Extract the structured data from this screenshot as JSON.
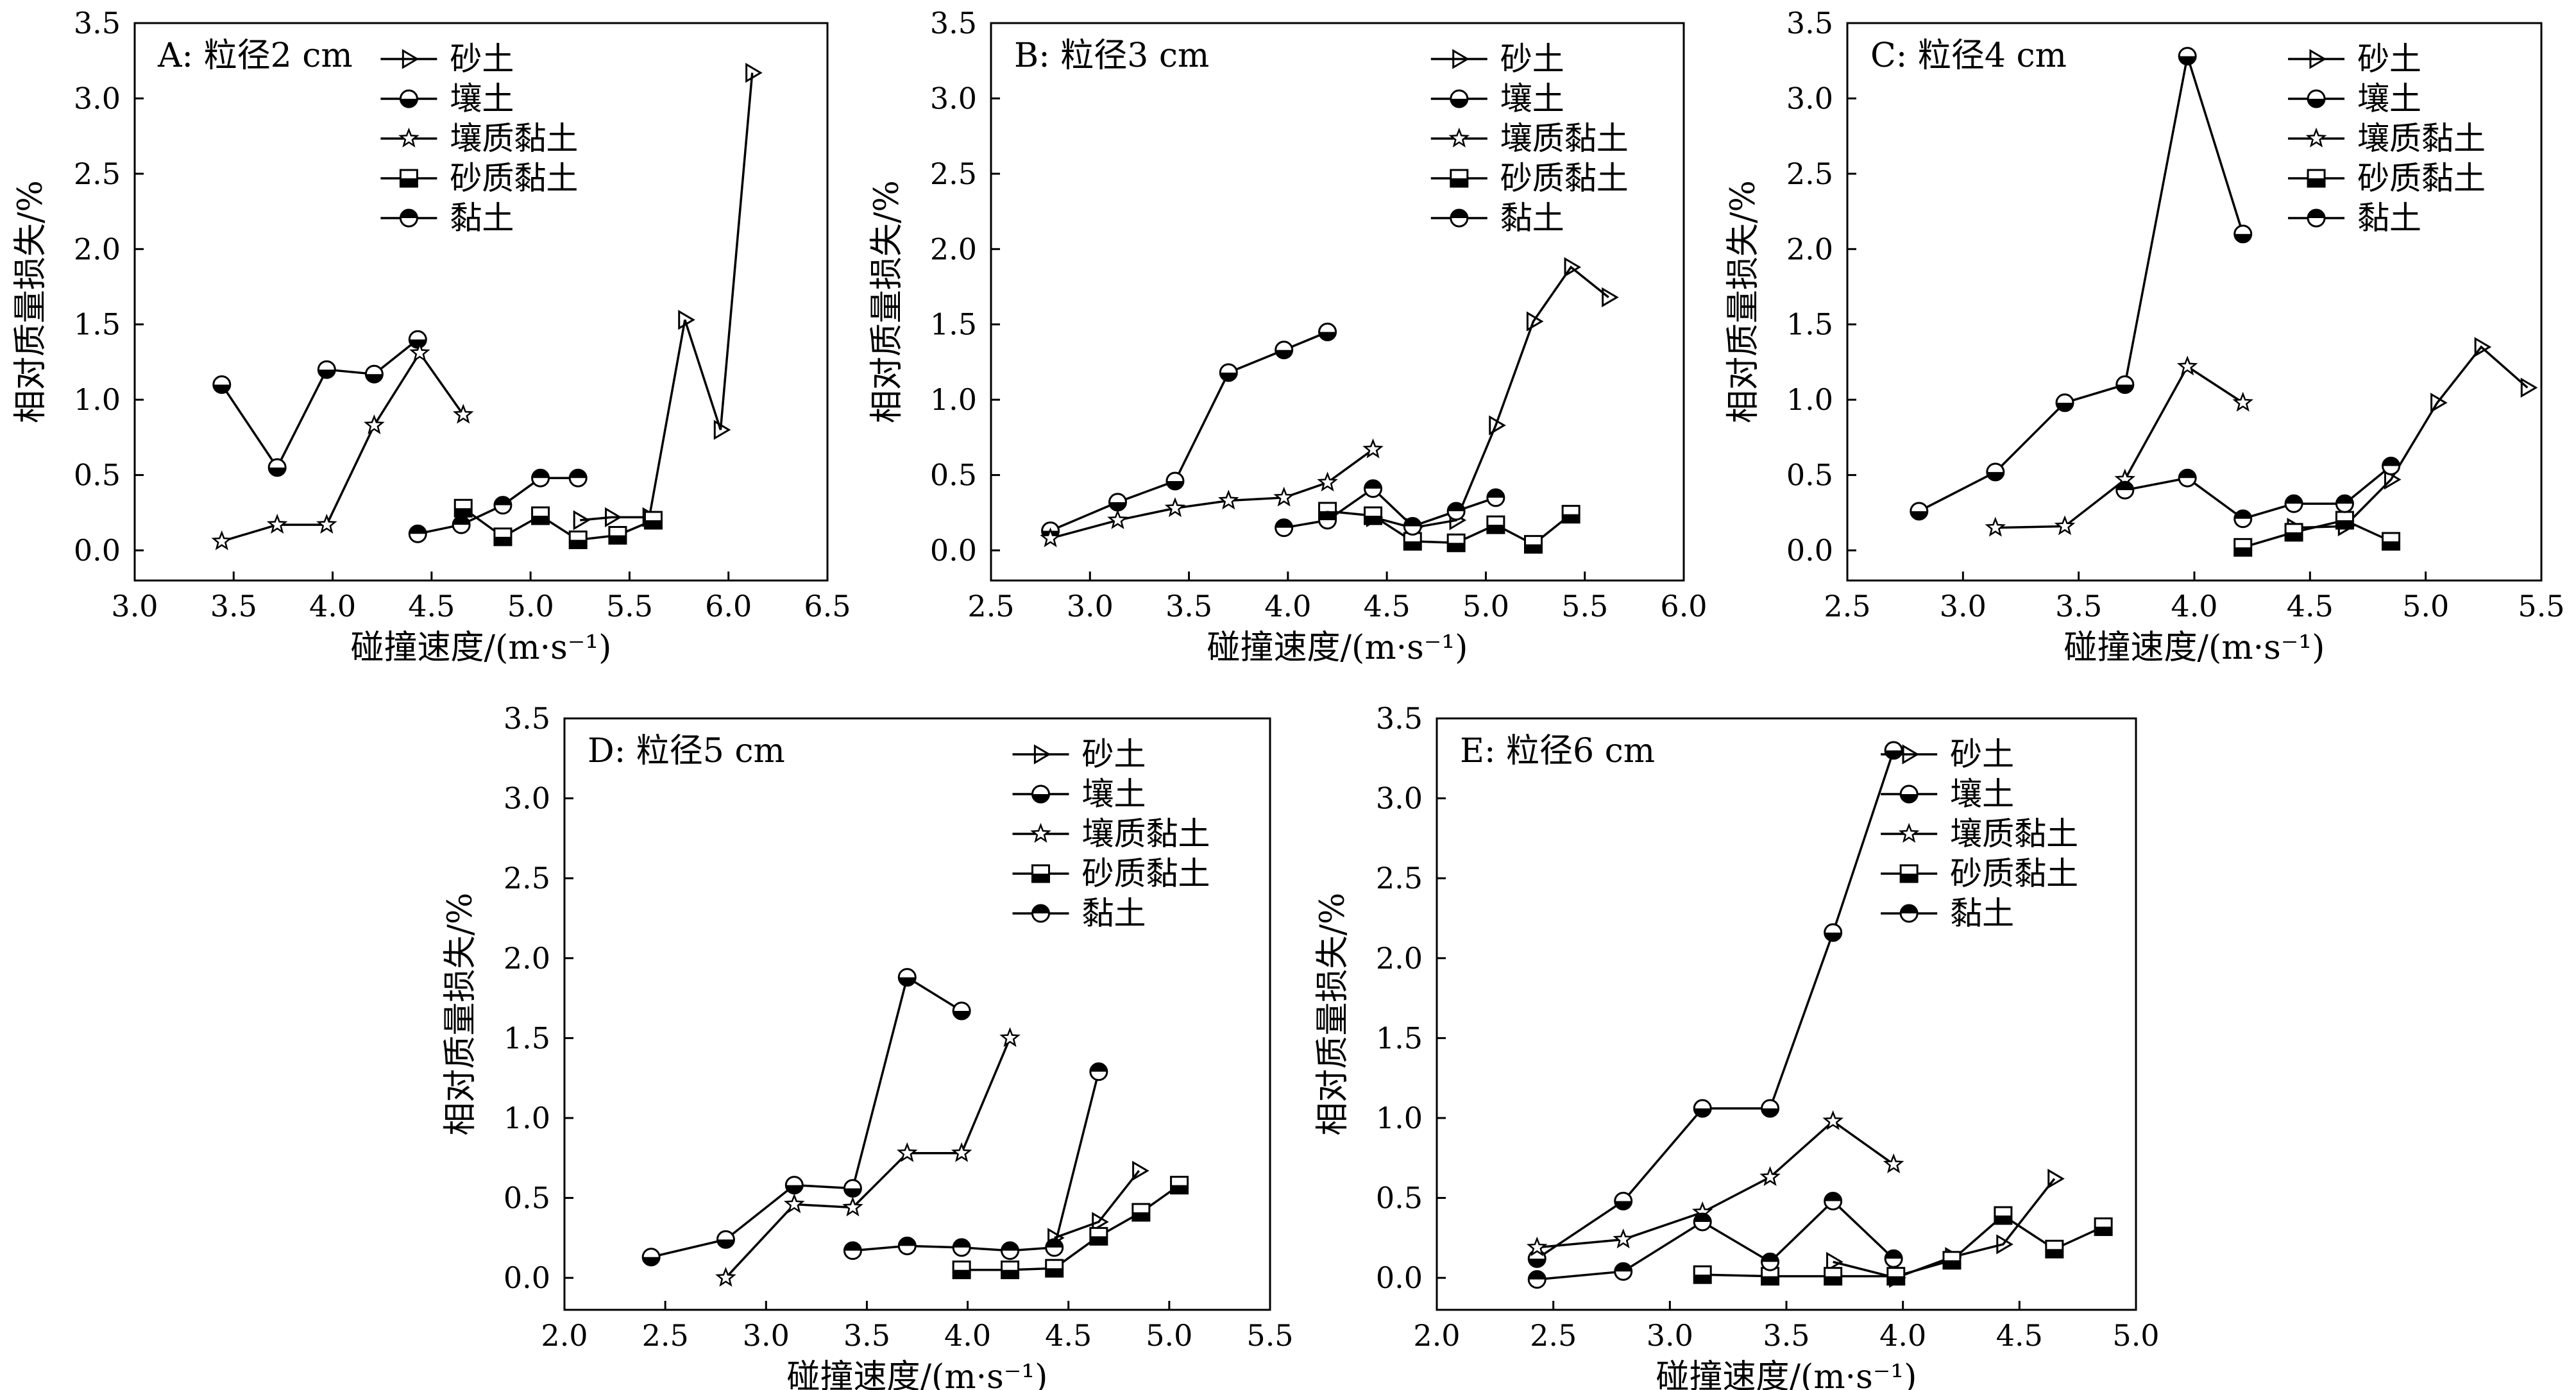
{
  "figure": {
    "xlabel": "碰撞速度/(m·s⁻¹)",
    "ylabel": "相对质量损失/%",
    "legend": [
      "砂土",
      "壤土",
      "壤质黏土",
      "砂质黏土",
      "黏土"
    ]
  },
  "chart_data": [
    {
      "type": "line",
      "title": "A: 粒径2 cm",
      "xlabel": "碰撞速度/(m·s⁻¹)",
      "ylabel": "相对质量损失/%",
      "xlim": [
        3.0,
        6.5
      ],
      "ylim": [
        -0.2,
        3.5
      ],
      "xticks": [
        3.0,
        3.5,
        4.0,
        4.5,
        5.0,
        5.5,
        6.0,
        6.5
      ],
      "yticks": [
        0.0,
        0.5,
        1.0,
        1.5,
        2.0,
        2.5,
        3.0,
        3.5
      ],
      "legend_position": "top-center",
      "series": [
        {
          "name": "砂土",
          "marker": "triangle-right",
          "x": [
            5.25,
            5.41,
            5.6,
            5.78,
            5.96,
            6.12
          ],
          "y": [
            0.2,
            0.22,
            0.22,
            1.53,
            0.8,
            3.17
          ]
        },
        {
          "name": "壤土",
          "marker": "circle-half-bottom",
          "x": [
            3.44,
            3.72,
            3.97,
            4.21,
            4.43
          ],
          "y": [
            1.1,
            0.55,
            1.2,
            1.17,
            1.4
          ]
        },
        {
          "name": "壤质黏土",
          "marker": "star",
          "x": [
            3.44,
            3.72,
            3.97,
            4.21,
            4.44,
            4.66
          ],
          "y": [
            0.06,
            0.17,
            0.17,
            0.83,
            1.31,
            0.9
          ]
        },
        {
          "name": "砂质黏土",
          "marker": "square-half-bottom",
          "x": [
            4.66,
            4.86,
            5.05,
            5.24,
            5.44,
            5.62
          ],
          "y": [
            0.28,
            0.09,
            0.23,
            0.07,
            0.1,
            0.2
          ]
        },
        {
          "name": "黏土",
          "marker": "circle-half-top",
          "x": [
            4.43,
            4.65,
            4.86,
            5.05,
            5.24
          ],
          "y": [
            0.11,
            0.17,
            0.3,
            0.48,
            0.48
          ]
        }
      ]
    },
    {
      "type": "line",
      "title": "B: 粒径3 cm",
      "xlabel": "碰撞速度/(m·s⁻¹)",
      "ylabel": "相对质量损失/%",
      "xlim": [
        2.5,
        6.0
      ],
      "ylim": [
        -0.2,
        3.5
      ],
      "xticks": [
        2.5,
        3.0,
        3.5,
        4.0,
        4.5,
        5.0,
        5.5,
        6.0
      ],
      "yticks": [
        0.0,
        0.5,
        1.0,
        1.5,
        2.0,
        2.5,
        3.0,
        3.5
      ],
      "legend_position": "top-right",
      "series": [
        {
          "name": "砂土",
          "marker": "triangle-right",
          "x": [
            4.43,
            4.63,
            4.85,
            5.05,
            5.24,
            5.43,
            5.62
          ],
          "y": [
            0.22,
            0.15,
            0.2,
            0.83,
            1.52,
            1.88,
            1.68
          ]
        },
        {
          "name": "壤土",
          "marker": "circle-half-bottom",
          "x": [
            2.8,
            3.14,
            3.43,
            3.7,
            3.98,
            4.2
          ],
          "y": [
            0.13,
            0.32,
            0.46,
            1.18,
            1.33,
            1.45
          ]
        },
        {
          "name": "壤质黏土",
          "marker": "star",
          "x": [
            2.8,
            3.14,
            3.43,
            3.7,
            3.98,
            4.2,
            4.43
          ],
          "y": [
            0.08,
            0.2,
            0.28,
            0.33,
            0.35,
            0.45,
            0.67
          ]
        },
        {
          "name": "砂质黏土",
          "marker": "square-half-bottom",
          "x": [
            4.2,
            4.43,
            4.63,
            4.85,
            5.05,
            5.24,
            5.43
          ],
          "y": [
            0.26,
            0.23,
            0.06,
            0.05,
            0.17,
            0.04,
            0.24
          ]
        },
        {
          "name": "黏土",
          "marker": "circle-half-top",
          "x": [
            3.98,
            4.2,
            4.43,
            4.63,
            4.85,
            5.05
          ],
          "y": [
            0.15,
            0.2,
            0.41,
            0.16,
            0.26,
            0.35
          ]
        }
      ]
    },
    {
      "type": "line",
      "title": "C: 粒径4 cm",
      "xlabel": "碰撞速度/(m·s⁻¹)",
      "ylabel": "相对质量损失/%",
      "xlim": [
        2.5,
        5.5
      ],
      "ylim": [
        -0.2,
        3.5
      ],
      "xticks": [
        2.5,
        3.0,
        3.5,
        4.0,
        4.5,
        5.0,
        5.5
      ],
      "yticks": [
        0.0,
        0.5,
        1.0,
        1.5,
        2.0,
        2.5,
        3.0,
        3.5
      ],
      "legend_position": "top-right",
      "series": [
        {
          "name": "砂土",
          "marker": "triangle-right",
          "x": [
            4.43,
            4.65,
            4.85,
            5.05,
            5.24,
            5.44
          ],
          "y": [
            0.15,
            0.16,
            0.47,
            0.98,
            1.35,
            1.08
          ]
        },
        {
          "name": "壤土",
          "marker": "circle-half-bottom",
          "x": [
            2.81,
            3.14,
            3.44,
            3.7,
            3.97,
            4.21
          ],
          "y": [
            0.26,
            0.52,
            0.98,
            1.1,
            3.28,
            2.1
          ]
        },
        {
          "name": "壤质黏土",
          "marker": "star",
          "x": [
            3.14,
            3.44,
            3.7,
            3.97,
            4.21
          ],
          "y": [
            0.15,
            0.16,
            0.47,
            1.22,
            0.98
          ]
        },
        {
          "name": "砂质黏土",
          "marker": "square-half-bottom",
          "x": [
            4.21,
            4.43,
            4.65,
            4.85
          ],
          "y": [
            0.02,
            0.12,
            0.2,
            0.06
          ]
        },
        {
          "name": "黏土",
          "marker": "circle-half-top",
          "x": [
            3.7,
            3.97,
            4.21,
            4.43,
            4.65,
            4.85
          ],
          "y": [
            0.4,
            0.48,
            0.21,
            0.31,
            0.31,
            0.56
          ]
        }
      ]
    },
    {
      "type": "line",
      "title": "D: 粒径5 cm",
      "xlabel": "碰撞速度/(m·s⁻¹)",
      "ylabel": "相对质量损失/%",
      "xlim": [
        2.0,
        5.5
      ],
      "ylim": [
        -0.2,
        3.5
      ],
      "xticks": [
        2.0,
        2.5,
        3.0,
        3.5,
        4.0,
        4.5,
        5.0,
        5.5
      ],
      "yticks": [
        0.0,
        0.5,
        1.0,
        1.5,
        2.0,
        2.5,
        3.0,
        3.5
      ],
      "legend_position": "top-right",
      "series": [
        {
          "name": "砂土",
          "marker": "triangle-right",
          "x": [
            4.43,
            4.65,
            4.85
          ],
          "y": [
            0.25,
            0.35,
            0.67
          ]
        },
        {
          "name": "壤土",
          "marker": "circle-half-bottom",
          "x": [
            2.43,
            2.8,
            3.14,
            3.43,
            3.7,
            3.97
          ],
          "y": [
            0.13,
            0.24,
            0.58,
            0.56,
            1.88,
            1.67
          ]
        },
        {
          "name": "壤质黏土",
          "marker": "star",
          "x": [
            2.8,
            3.14,
            3.43,
            3.7,
            3.97,
            4.21
          ],
          "y": [
            0.0,
            0.46,
            0.44,
            0.78,
            0.78,
            1.5
          ]
        },
        {
          "name": "砂质黏土",
          "marker": "square-half-bottom",
          "x": [
            3.97,
            4.21,
            4.43,
            4.65,
            4.86,
            5.05
          ],
          "y": [
            0.05,
            0.05,
            0.06,
            0.26,
            0.41,
            0.58
          ]
        },
        {
          "name": "黏土",
          "marker": "circle-half-top",
          "x": [
            3.43,
            3.7,
            3.97,
            4.21,
            4.43,
            4.65
          ],
          "y": [
            0.17,
            0.2,
            0.19,
            0.17,
            0.19,
            1.29
          ]
        }
      ]
    },
    {
      "type": "line",
      "title": "E: 粒径6 cm",
      "xlabel": "碰撞速度/(m·s⁻¹)",
      "ylabel": "相对质量损失/%",
      "xlim": [
        2.0,
        5.0
      ],
      "ylim": [
        -0.2,
        3.5
      ],
      "xticks": [
        2.0,
        2.5,
        3.0,
        3.5,
        4.0,
        4.5,
        5.0
      ],
      "yticks": [
        0.0,
        0.5,
        1.0,
        1.5,
        2.0,
        2.5,
        3.0,
        3.5
      ],
      "legend_position": "top-right",
      "series": [
        {
          "name": "砂土",
          "marker": "triangle-right",
          "x": [
            3.7,
            3.97,
            4.21,
            4.43,
            4.65
          ],
          "y": [
            0.1,
            0.0,
            0.13,
            0.21,
            0.62
          ]
        },
        {
          "name": "壤土",
          "marker": "circle-half-bottom",
          "x": [
            2.43,
            2.8,
            3.14,
            3.43,
            3.7,
            3.96
          ],
          "y": [
            0.12,
            0.48,
            1.06,
            1.06,
            2.16,
            3.3
          ]
        },
        {
          "name": "壤质黏土",
          "marker": "star",
          "x": [
            2.43,
            2.8,
            3.14,
            3.43,
            3.7,
            3.96
          ],
          "y": [
            0.19,
            0.24,
            0.41,
            0.63,
            0.98,
            0.71
          ]
        },
        {
          "name": "砂质黏土",
          "marker": "square-half-bottom",
          "x": [
            3.14,
            3.43,
            3.7,
            3.97,
            4.21,
            4.43,
            4.65,
            4.86
          ],
          "y": [
            0.02,
            0.01,
            0.01,
            0.01,
            0.11,
            0.39,
            0.18,
            0.32
          ]
        },
        {
          "name": "黏土",
          "marker": "circle-half-top",
          "x": [
            2.43,
            2.8,
            3.14,
            3.43,
            3.7,
            3.96
          ],
          "y": [
            -0.01,
            0.04,
            0.35,
            0.1,
            0.48,
            0.12
          ]
        }
      ]
    }
  ]
}
